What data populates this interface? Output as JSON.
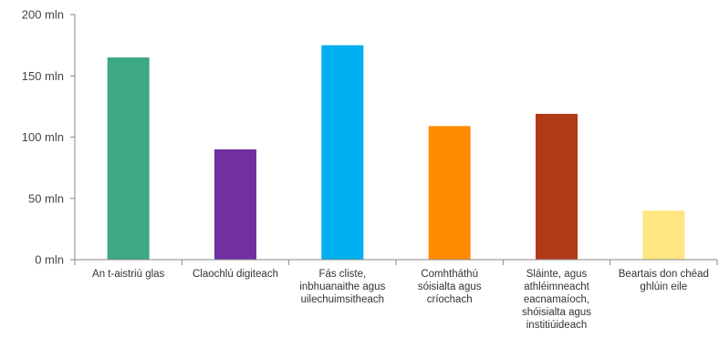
{
  "chart_data": {
    "type": "bar",
    "title": "",
    "xlabel": "",
    "ylabel": "",
    "ylim": [
      0,
      200
    ],
    "y_ticks": [
      {
        "value": 0,
        "label": "0 mln"
      },
      {
        "value": 50,
        "label": "50 mln"
      },
      {
        "value": 100,
        "label": "100 mln"
      },
      {
        "value": 150,
        "label": "150 mln"
      },
      {
        "value": 200,
        "label": "200 mln"
      }
    ],
    "grid": false,
    "legend": "none",
    "categories": [
      [
        "An t-aistriú glas"
      ],
      [
        "Claochlú digiteach"
      ],
      [
        "Fás cliste,",
        "inbhuanaithe agus",
        "uilechuimsitheach"
      ],
      [
        "Comhtháthú",
        "sóisialta agus",
        "críochach"
      ],
      [
        "Sláinte, agus",
        "athléimneacht",
        "eacnamaíoch,",
        "shóisialta agus",
        "institiúideach"
      ],
      [
        "Beartais don chéad",
        "ghlúin eile"
      ]
    ],
    "values": [
      165,
      90,
      175,
      109,
      119,
      40
    ],
    "colors": [
      "#3DA882",
      "#7030A0",
      "#00B0F0",
      "#FF8C00",
      "#B03A16",
      "#FFE680"
    ]
  }
}
